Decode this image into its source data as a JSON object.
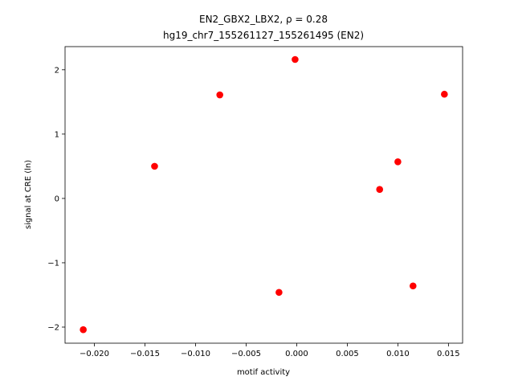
{
  "chart_data": {
    "type": "scatter",
    "title": "EN2_GBX2_LBX2, ρ = 0.28",
    "subtitle": "hg19_chr7_155261127_155261495 (EN2)",
    "x_label": "motif activity",
    "y_label": "signal at CRE (ln)",
    "color": "#ff0000",
    "series": [
      {
        "x": [
          -0.0211,
          -0.01405,
          -0.0076,
          -0.00175,
          -0.00016,
          0.0082,
          0.01,
          0.0115,
          0.0146
        ],
        "values": [
          -2.04,
          0.5,
          1.61,
          -1.46,
          2.16,
          0.14,
          0.57,
          -1.36,
          1.62
        ]
      }
    ],
    "xlim": [
      -0.0229,
      0.0164
    ],
    "ylim": [
      -2.25,
      2.36
    ],
    "xticks": [
      {
        "value": -0.02,
        "label": "−0.020"
      },
      {
        "value": -0.015,
        "label": "−0.015"
      },
      {
        "value": -0.01,
        "label": "−0.010"
      },
      {
        "value": -0.005,
        "label": "−0.005"
      },
      {
        "value": 0,
        "label": "0.000"
      },
      0.005,
      {
        "value": 0.01,
        "label": "0.010"
      },
      0.015
    ],
    "yticks": [
      {
        "value": -2,
        "label": "−2"
      },
      {
        "value": -1,
        "label": "−1"
      },
      0,
      1,
      2
    ]
  }
}
